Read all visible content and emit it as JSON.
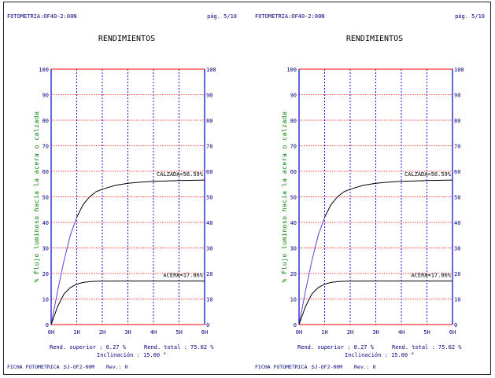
{
  "colors": {
    "frame": "#ff0000",
    "grid": "#0000cc",
    "text_blue": "#000080",
    "ylabel": "#008000",
    "calzada_line": "#000000",
    "acera_line": "#000000",
    "rise_line": "#6a3ad0"
  },
  "pages": [
    {
      "header_left": "FOTOMETRIA:OF40-2:00N",
      "header_right": "pág. 5/10",
      "title": "RENDIMIENTOS",
      "footer_left": "FICHA FOTOMETRICA :",
      "footer_code": "SJ-OF2-00M",
      "footer_rev": "Rev.: 0",
      "summary": {
        "rend_superior": "Rend. superior : 0.27 %",
        "rend_total": "Rend. total : 75.02 %",
        "inclinacion": "Inclinación : 15.00 °"
      },
      "chart_data": {
        "type": "line",
        "ylabel": "% Flujo luminoso hacia la acera o calzada",
        "y_ticks": [
          "0",
          "10",
          "20",
          "30",
          "40",
          "50",
          "60",
          "70",
          "80",
          "90",
          "100"
        ],
        "x_ticks": [
          "0H",
          "1H",
          "2H",
          "3H",
          "4H",
          "5H",
          "6H"
        ],
        "xlim": [
          0,
          6
        ],
        "ylim": [
          0,
          100
        ],
        "grid": true,
        "series": [
          {
            "name": "CALZADA",
            "label": "CALZADA=56.59%",
            "x": [
              0,
              0.25,
              0.5,
              0.75,
              1,
              1.25,
              1.5,
              1.75,
              2,
              2.5,
              3,
              3.5,
              4,
              5,
              6
            ],
            "y": [
              0,
              13,
              25,
              35,
              42,
              47,
              50,
              52,
              53,
              54.5,
              55.3,
              55.8,
              56.1,
              56.4,
              56.59
            ]
          },
          {
            "name": "ACERA",
            "label": "ACERA=17.06%",
            "x": [
              0,
              0.25,
              0.5,
              0.75,
              1,
              1.25,
              1.5,
              1.75,
              2,
              3,
              4,
              5,
              6
            ],
            "y": [
              0,
              7,
              12,
              14.5,
              15.8,
              16.5,
              16.8,
              16.95,
              17.0,
              17.05,
              17.06,
              17.06,
              17.06
            ]
          }
        ]
      }
    },
    {
      "header_left": "FOTOMETRIA:OF40-2:00N",
      "header_right": "pág. 5/10",
      "title": "RENDIMIENTOS",
      "footer_left": "FICHA FOTOMETRICA :",
      "footer_code": "SJ-OF2-00M",
      "footer_rev": "Rev.: 0",
      "summary": {
        "rend_superior": "Rend. superior : 0.27 %",
        "rend_total": "Rend. total : 75.02 %",
        "inclinacion": "Inclinación : 15.00 °"
      },
      "chart_data": {
        "type": "line",
        "ylabel": "% Flujo luminoso hacia la acera o calzada",
        "y_ticks": [
          "0",
          "10",
          "20",
          "30",
          "40",
          "50",
          "60",
          "70",
          "80",
          "90",
          "100"
        ],
        "x_ticks": [
          "0H",
          "1H",
          "2H",
          "3H",
          "4H",
          "5H",
          "6H"
        ],
        "xlim": [
          0,
          6
        ],
        "ylim": [
          0,
          100
        ],
        "grid": true,
        "series": [
          {
            "name": "CALZADA",
            "label": "CALZADA=56.59%",
            "x": [
              0,
              0.25,
              0.5,
              0.75,
              1,
              1.25,
              1.5,
              1.75,
              2,
              2.5,
              3,
              3.5,
              4,
              5,
              6
            ],
            "y": [
              0,
              13,
              25,
              35,
              42,
              47,
              50,
              52,
              53,
              54.5,
              55.3,
              55.8,
              56.1,
              56.4,
              56.59
            ]
          },
          {
            "name": "ACERA",
            "label": "ACERA=17.06%",
            "x": [
              0,
              0.25,
              0.5,
              0.75,
              1,
              1.25,
              1.5,
              1.75,
              2,
              3,
              4,
              5,
              6
            ],
            "y": [
              0,
              7,
              12,
              14.5,
              15.8,
              16.5,
              16.8,
              16.95,
              17.0,
              17.05,
              17.06,
              17.06,
              17.06
            ]
          }
        ]
      }
    }
  ]
}
